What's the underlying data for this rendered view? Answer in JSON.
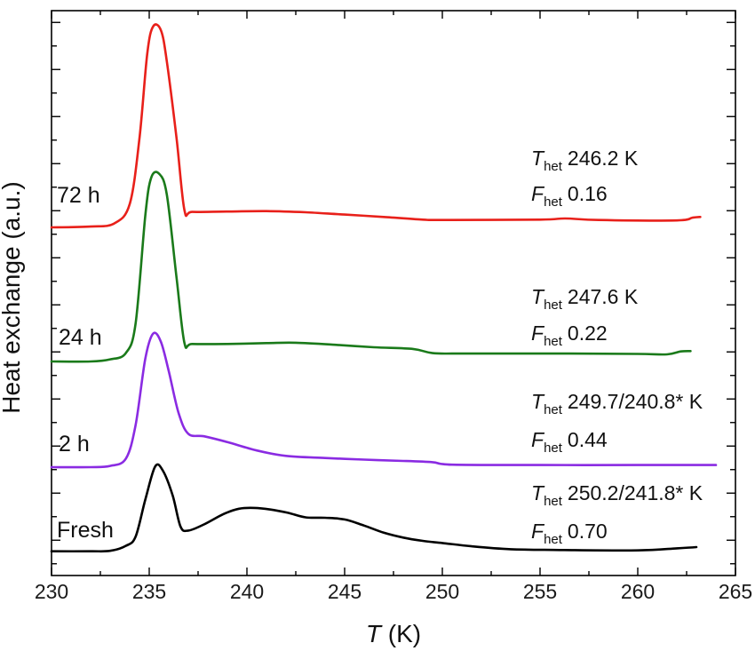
{
  "chart_data": {
    "type": "line",
    "xlabel": {
      "var": "T",
      "unit": " (K)"
    },
    "ylabel": "Heat exchange (a.u.)",
    "xlim": [
      230,
      265
    ],
    "xticks": [
      "230",
      "235",
      "240",
      "245",
      "250",
      "255",
      "260",
      "265"
    ],
    "grid": false,
    "y_ticks_labeled": false,
    "series": [
      {
        "name": "Fresh",
        "color": "#000000",
        "points": [
          [
            230.0,
            0.05
          ],
          [
            232.0,
            0.05
          ],
          [
            233.0,
            0.06
          ],
          [
            233.8,
            0.18
          ],
          [
            234.3,
            0.4
          ],
          [
            234.8,
            1.3
          ],
          [
            235.3,
            2.1
          ],
          [
            235.7,
            2.0
          ],
          [
            236.2,
            1.4
          ],
          [
            236.6,
            0.65
          ],
          [
            237.0,
            0.55
          ],
          [
            237.8,
            0.7
          ],
          [
            238.8,
            0.95
          ],
          [
            239.6,
            1.08
          ],
          [
            240.4,
            1.1
          ],
          [
            241.2,
            1.06
          ],
          [
            242.1,
            0.98
          ],
          [
            243.0,
            0.87
          ],
          [
            244.0,
            0.86
          ],
          [
            245.0,
            0.82
          ],
          [
            246.0,
            0.67
          ],
          [
            247.0,
            0.5
          ],
          [
            248.0,
            0.38
          ],
          [
            249.0,
            0.3
          ],
          [
            250.0,
            0.25
          ],
          [
            251.5,
            0.17
          ],
          [
            253.5,
            0.1
          ],
          [
            256.0,
            0.08
          ],
          [
            260.0,
            0.07
          ],
          [
            262.0,
            0.12
          ],
          [
            263.0,
            0.15
          ]
        ]
      },
      {
        "name": "2 h",
        "color": "#8a2be2",
        "points": [
          [
            230.0,
            0.0
          ],
          [
            232.0,
            0.0
          ],
          [
            233.0,
            0.03
          ],
          [
            233.8,
            0.2
          ],
          [
            234.3,
            1.0
          ],
          [
            234.8,
            2.6
          ],
          [
            235.2,
            3.2
          ],
          [
            235.6,
            3.0
          ],
          [
            236.0,
            2.3
          ],
          [
            236.5,
            1.3
          ],
          [
            237.0,
            0.8
          ],
          [
            237.8,
            0.74
          ],
          [
            239.0,
            0.6
          ],
          [
            240.5,
            0.4
          ],
          [
            242.0,
            0.27
          ],
          [
            244.0,
            0.22
          ],
          [
            246.0,
            0.18
          ],
          [
            248.0,
            0.15
          ],
          [
            249.5,
            0.12
          ],
          [
            250.5,
            0.06
          ],
          [
            255.0,
            0.05
          ],
          [
            260.0,
            0.05
          ],
          [
            264.0,
            0.05
          ]
        ]
      },
      {
        "name": "24 h",
        "color": "#1a7a1a",
        "points": [
          [
            230.0,
            0.0
          ],
          [
            232.0,
            0.0
          ],
          [
            233.0,
            0.05
          ],
          [
            233.8,
            0.2
          ],
          [
            234.3,
            0.9
          ],
          [
            234.8,
            3.5
          ],
          [
            235.1,
            4.4
          ],
          [
            235.5,
            4.5
          ],
          [
            235.9,
            4.0
          ],
          [
            236.4,
            2.0
          ],
          [
            236.8,
            0.45
          ],
          [
            237.2,
            0.42
          ],
          [
            239.0,
            0.42
          ],
          [
            241.0,
            0.44
          ],
          [
            242.5,
            0.45
          ],
          [
            244.5,
            0.4
          ],
          [
            246.5,
            0.34
          ],
          [
            248.5,
            0.3
          ],
          [
            249.5,
            0.2
          ],
          [
            251.0,
            0.19
          ],
          [
            256.0,
            0.19
          ],
          [
            260.0,
            0.18
          ],
          [
            261.5,
            0.17
          ],
          [
            262.2,
            0.24
          ],
          [
            262.7,
            0.25
          ]
        ]
      },
      {
        "name": "72 h",
        "color": "#e8201a",
        "points": [
          [
            230.0,
            0.0
          ],
          [
            232.0,
            0.02
          ],
          [
            233.2,
            0.1
          ],
          [
            234.0,
            0.6
          ],
          [
            234.5,
            2.3
          ],
          [
            234.9,
            4.5
          ],
          [
            235.2,
            5.2
          ],
          [
            235.6,
            5.1
          ],
          [
            235.9,
            4.3
          ],
          [
            236.4,
            2.3
          ],
          [
            236.8,
            0.45
          ],
          [
            237.2,
            0.4
          ],
          [
            239.0,
            0.41
          ],
          [
            241.0,
            0.42
          ],
          [
            243.0,
            0.39
          ],
          [
            245.0,
            0.33
          ],
          [
            247.0,
            0.27
          ],
          [
            249.0,
            0.2
          ],
          [
            250.0,
            0.19
          ],
          [
            255.0,
            0.2
          ],
          [
            256.3,
            0.23
          ],
          [
            258.0,
            0.19
          ],
          [
            262.0,
            0.18
          ],
          [
            262.8,
            0.25
          ],
          [
            263.2,
            0.27
          ]
        ]
      }
    ],
    "annotations": [
      {
        "series": "72 h",
        "t_value": "246.2 K",
        "f_value": "0.16"
      },
      {
        "series": "24 h",
        "t_value": "247.6 K",
        "f_value": "0.22"
      },
      {
        "series": "2 h",
        "t_value": "249.7/240.8* K",
        "f_value": "0.44"
      },
      {
        "series": "Fresh",
        "t_value": "250.2/241.8* K",
        "f_value": "0.70"
      }
    ],
    "ann_symbols": {
      "t": "T",
      "f": "F",
      "sub": "het"
    }
  }
}
